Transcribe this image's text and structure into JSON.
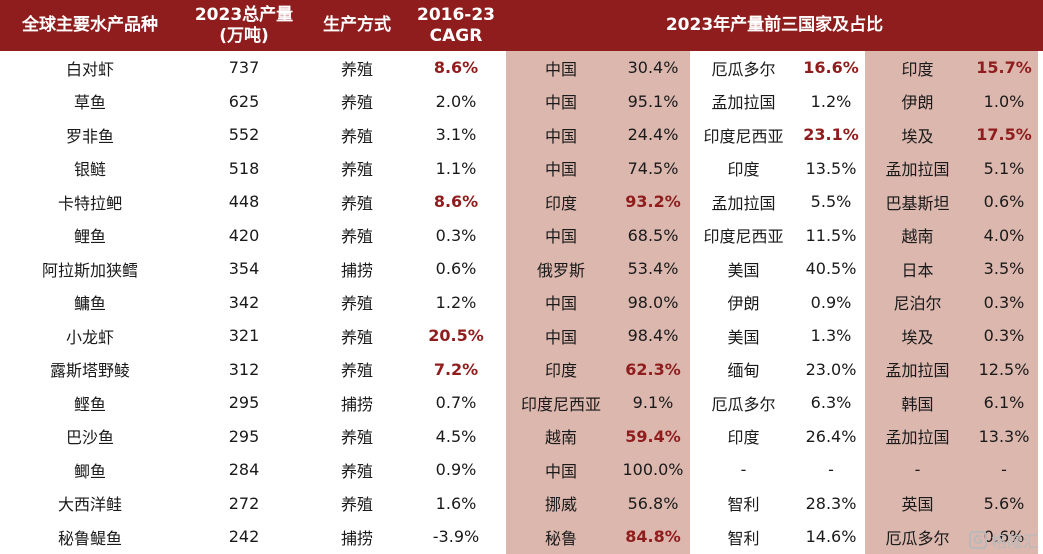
{
  "header": {
    "species": "全球主要水产品种",
    "production_line1": "2023总产量",
    "production_line2": "(万吨)",
    "method": "生产方式",
    "cagr_line1": "2016-23",
    "cagr_line2": "CAGR",
    "top3": "2023年产量前三国家及占比"
  },
  "rows": [
    {
      "species": "白对虾",
      "production": "737",
      "method": "养殖",
      "cagr": "8.6%",
      "cagr_hl": true,
      "c1": "中国",
      "p1": "30.4%",
      "p1_hl": false,
      "c2": "厄瓜多尔",
      "p2": "16.6%",
      "p2_hl": true,
      "c3": "印度",
      "p3": "15.7%",
      "p3_hl": true
    },
    {
      "species": "草鱼",
      "production": "625",
      "method": "养殖",
      "cagr": "2.0%",
      "cagr_hl": false,
      "c1": "中国",
      "p1": "95.1%",
      "p1_hl": false,
      "c2": "孟加拉国",
      "p2": "1.2%",
      "p2_hl": false,
      "c3": "伊朗",
      "p3": "1.0%",
      "p3_hl": false
    },
    {
      "species": "罗非鱼",
      "production": "552",
      "method": "养殖",
      "cagr": "3.1%",
      "cagr_hl": false,
      "c1": "中国",
      "p1": "24.4%",
      "p1_hl": false,
      "c2": "印度尼西亚",
      "p2": "23.1%",
      "p2_hl": true,
      "c3": "埃及",
      "p3": "17.5%",
      "p3_hl": true
    },
    {
      "species": "银鲢",
      "production": "518",
      "method": "养殖",
      "cagr": "1.1%",
      "cagr_hl": false,
      "c1": "中国",
      "p1": "74.5%",
      "p1_hl": false,
      "c2": "印度",
      "p2": "13.5%",
      "p2_hl": false,
      "c3": "孟加拉国",
      "p3": "5.1%",
      "p3_hl": false
    },
    {
      "species": "卡特拉鲃",
      "production": "448",
      "method": "养殖",
      "cagr": "8.6%",
      "cagr_hl": true,
      "c1": "印度",
      "p1": "93.2%",
      "p1_hl": true,
      "c2": "孟加拉国",
      "p2": "5.5%",
      "p2_hl": false,
      "c3": "巴基斯坦",
      "p3": "0.6%",
      "p3_hl": false
    },
    {
      "species": "鲤鱼",
      "production": "420",
      "method": "养殖",
      "cagr": "0.3%",
      "cagr_hl": false,
      "c1": "中国",
      "p1": "68.5%",
      "p1_hl": false,
      "c2": "印度尼西亚",
      "p2": "11.5%",
      "p2_hl": false,
      "c3": "越南",
      "p3": "4.0%",
      "p3_hl": false
    },
    {
      "species": "阿拉斯加狭鳕",
      "production": "354",
      "method": "捕捞",
      "cagr": "0.6%",
      "cagr_hl": false,
      "c1": "俄罗斯",
      "p1": "53.4%",
      "p1_hl": false,
      "c2": "美国",
      "p2": "40.5%",
      "p2_hl": false,
      "c3": "日本",
      "p3": "3.5%",
      "p3_hl": false
    },
    {
      "species": "鳙鱼",
      "production": "342",
      "method": "养殖",
      "cagr": "1.2%",
      "cagr_hl": false,
      "c1": "中国",
      "p1": "98.0%",
      "p1_hl": false,
      "c2": "伊朗",
      "p2": "0.9%",
      "p2_hl": false,
      "c3": "尼泊尔",
      "p3": "0.3%",
      "p3_hl": false
    },
    {
      "species": "小龙虾",
      "production": "321",
      "method": "养殖",
      "cagr": "20.5%",
      "cagr_hl": true,
      "c1": "中国",
      "p1": "98.4%",
      "p1_hl": false,
      "c2": "美国",
      "p2": "1.3%",
      "p2_hl": false,
      "c3": "埃及",
      "p3": "0.3%",
      "p3_hl": false
    },
    {
      "species": "露斯塔野鲮",
      "production": "312",
      "method": "养殖",
      "cagr": "7.2%",
      "cagr_hl": true,
      "c1": "印度",
      "p1": "62.3%",
      "p1_hl": true,
      "c2": "缅甸",
      "p2": "23.0%",
      "p2_hl": false,
      "c3": "孟加拉国",
      "p3": "12.5%",
      "p3_hl": false
    },
    {
      "species": "鲣鱼",
      "production": "295",
      "method": "捕捞",
      "cagr": "0.7%",
      "cagr_hl": false,
      "c1": "印度尼西亚",
      "p1": "9.1%",
      "p1_hl": false,
      "c2": "厄瓜多尔",
      "p2": "6.3%",
      "p2_hl": false,
      "c3": "韩国",
      "p3": "6.1%",
      "p3_hl": false
    },
    {
      "species": "巴沙鱼",
      "production": "295",
      "method": "养殖",
      "cagr": "4.5%",
      "cagr_hl": false,
      "c1": "越南",
      "p1": "59.4%",
      "p1_hl": true,
      "c2": "印度",
      "p2": "26.4%",
      "p2_hl": false,
      "c3": "孟加拉国",
      "p3": "13.3%",
      "p3_hl": false
    },
    {
      "species": "鲫鱼",
      "production": "284",
      "method": "养殖",
      "cagr": "0.9%",
      "cagr_hl": false,
      "c1": "中国",
      "p1": "100.0%",
      "p1_hl": false,
      "c2": "-",
      "p2": "-",
      "p2_hl": false,
      "c3": "-",
      "p3": "-",
      "p3_hl": false
    },
    {
      "species": "大西洋鲑",
      "production": "272",
      "method": "养殖",
      "cagr": "1.6%",
      "cagr_hl": false,
      "c1": "挪威",
      "p1": "56.8%",
      "p1_hl": false,
      "c2": "智利",
      "p2": "28.3%",
      "p2_hl": false,
      "c3": "英国",
      "p3": "5.6%",
      "p3_hl": false
    },
    {
      "species": "秘鲁鳀鱼",
      "production": "242",
      "method": "捕捞",
      "cagr": "-3.9%",
      "cagr_hl": false,
      "c1": "秘鲁",
      "p1": "84.8%",
      "p1_hl": true,
      "c2": "智利",
      "p2": "14.6%",
      "p2_hl": false,
      "c3": "厄瓜多尔",
      "p3": "0.6%",
      "p3_hl": false
    }
  ],
  "watermark": "格隆汇",
  "watermark_logo": "G"
}
